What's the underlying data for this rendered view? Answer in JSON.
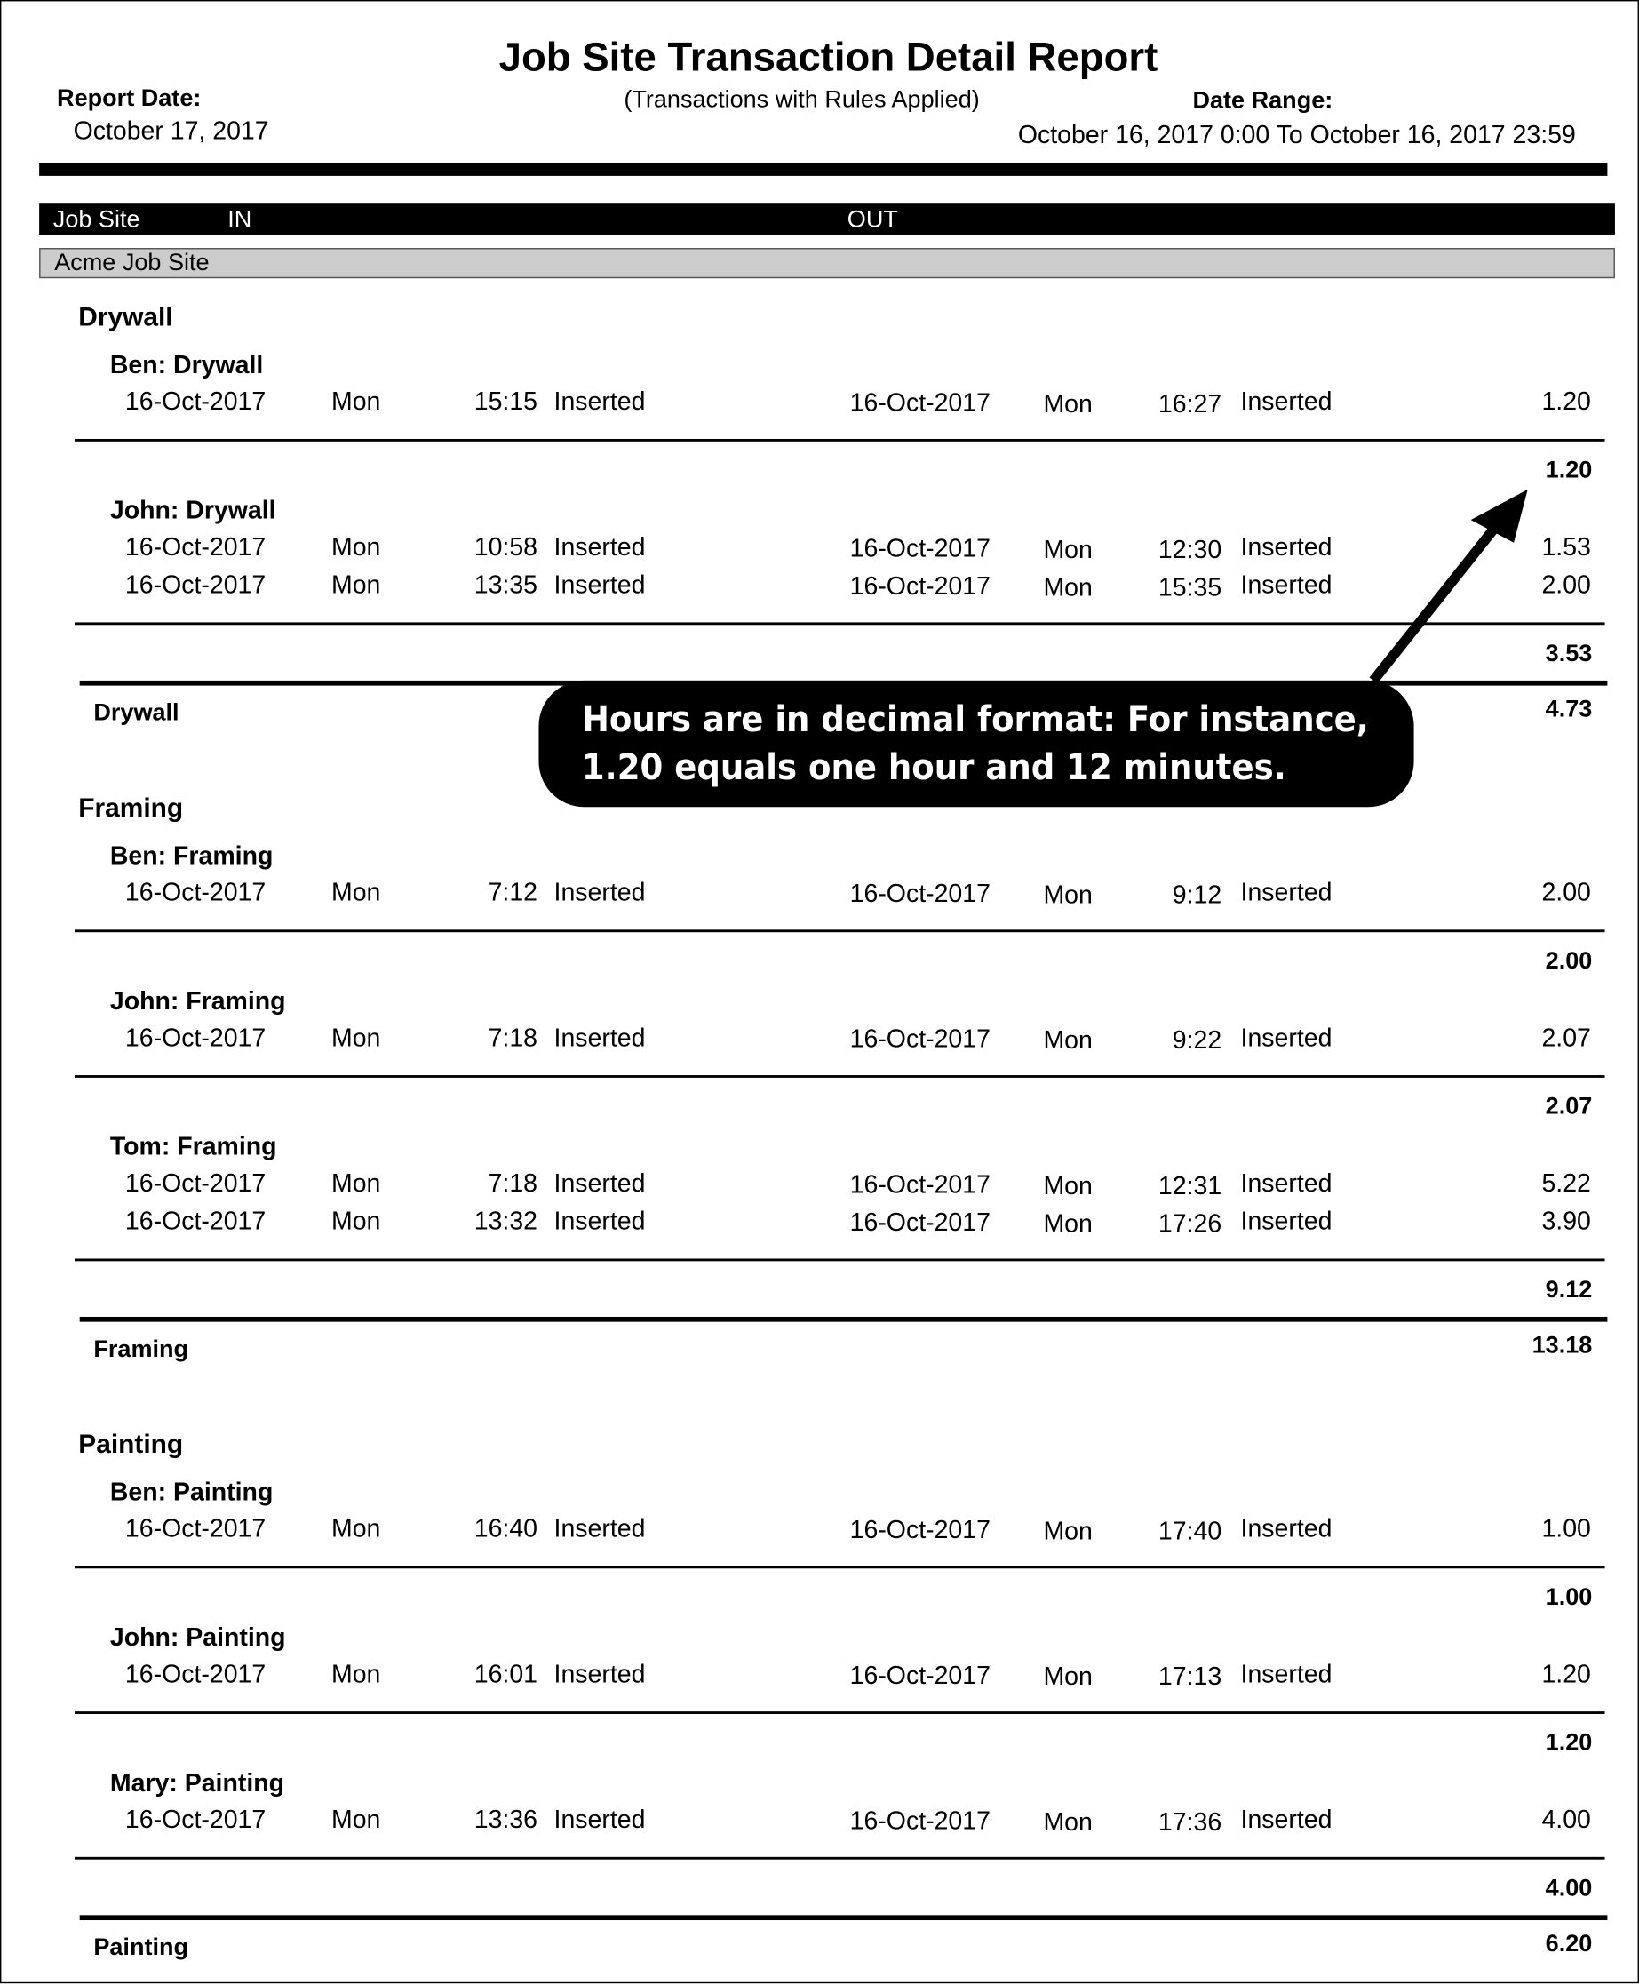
{
  "header": {
    "title": "Job Site Transaction Detail Report",
    "subtitle": "(Transactions with Rules Applied)",
    "report_date_label": "Report Date:",
    "report_date": "October 17, 2017",
    "date_range_label": "Date Range:",
    "date_range": "October 16, 2017 0:00  To  October 16, 2017 23:59"
  },
  "columns": {
    "job_site": "Job Site",
    "in": "IN",
    "out": "OUT"
  },
  "job_site": "Acme Job Site",
  "callout": {
    "line1": "Hours are in decimal format: For instance,",
    "line2": "1.20 equals one hour and 12 minutes."
  },
  "crafts": [
    {
      "name": "Drywall",
      "total_label": "Drywall",
      "total": "4.73",
      "employees": [
        {
          "name": "Ben: Drywall",
          "subtotal": "1.20",
          "rows": [
            {
              "in_date": "16-Oct-2017",
              "in_day": "Mon",
              "in_time": "15:15",
              "in_status": "Inserted",
              "out_date": "16-Oct-2017",
              "out_day": "Mon",
              "out_time": "16:27",
              "out_status": "Inserted",
              "hours": "1.20"
            }
          ]
        },
        {
          "name": "John: Drywall",
          "subtotal": "3.53",
          "rows": [
            {
              "in_date": "16-Oct-2017",
              "in_day": "Mon",
              "in_time": "10:58",
              "in_status": "Inserted",
              "out_date": "16-Oct-2017",
              "out_day": "Mon",
              "out_time": "12:30",
              "out_status": "Inserted",
              "hours": "1.53"
            },
            {
              "in_date": "16-Oct-2017",
              "in_day": "Mon",
              "in_time": "13:35",
              "in_status": "Inserted",
              "out_date": "16-Oct-2017",
              "out_day": "Mon",
              "out_time": "15:35",
              "out_status": "Inserted",
              "hours": "2.00"
            }
          ]
        }
      ]
    },
    {
      "name": "Framing",
      "total_label": "Framing",
      "total": "13.18",
      "employees": [
        {
          "name": "Ben: Framing",
          "subtotal": "2.00",
          "rows": [
            {
              "in_date": "16-Oct-2017",
              "in_day": "Mon",
              "in_time": "7:12",
              "in_status": "Inserted",
              "out_date": "16-Oct-2017",
              "out_day": "Mon",
              "out_time": "9:12",
              "out_status": "Inserted",
              "hours": "2.00"
            }
          ]
        },
        {
          "name": "John: Framing",
          "subtotal": "2.07",
          "rows": [
            {
              "in_date": "16-Oct-2017",
              "in_day": "Mon",
              "in_time": "7:18",
              "in_status": "Inserted",
              "out_date": "16-Oct-2017",
              "out_day": "Mon",
              "out_time": "9:22",
              "out_status": "Inserted",
              "hours": "2.07"
            }
          ]
        },
        {
          "name": "Tom: Framing",
          "subtotal": "9.12",
          "rows": [
            {
              "in_date": "16-Oct-2017",
              "in_day": "Mon",
              "in_time": "7:18",
              "in_status": "Inserted",
              "out_date": "16-Oct-2017",
              "out_day": "Mon",
              "out_time": "12:31",
              "out_status": "Inserted",
              "hours": "5.22"
            },
            {
              "in_date": "16-Oct-2017",
              "in_day": "Mon",
              "in_time": "13:32",
              "in_status": "Inserted",
              "out_date": "16-Oct-2017",
              "out_day": "Mon",
              "out_time": "17:26",
              "out_status": "Inserted",
              "hours": "3.90"
            }
          ]
        }
      ]
    },
    {
      "name": "Painting",
      "total_label": "Painting",
      "total": "6.20",
      "employees": [
        {
          "name": "Ben: Painting",
          "subtotal": "1.00",
          "rows": [
            {
              "in_date": "16-Oct-2017",
              "in_day": "Mon",
              "in_time": "16:40",
              "in_status": "Inserted",
              "out_date": "16-Oct-2017",
              "out_day": "Mon",
              "out_time": "17:40",
              "out_status": "Inserted",
              "hours": "1.00"
            }
          ]
        },
        {
          "name": "John: Painting",
          "subtotal": "1.20",
          "rows": [
            {
              "in_date": "16-Oct-2017",
              "in_day": "Mon",
              "in_time": "16:01",
              "in_status": "Inserted",
              "out_date": "16-Oct-2017",
              "out_day": "Mon",
              "out_time": "17:13",
              "out_status": "Inserted",
              "hours": "1.20"
            }
          ]
        },
        {
          "name": "Mary: Painting",
          "subtotal": "4.00",
          "rows": [
            {
              "in_date": "16-Oct-2017",
              "in_day": "Mon",
              "in_time": "13:36",
              "in_status": "Inserted",
              "out_date": "16-Oct-2017",
              "out_day": "Mon",
              "out_time": "17:36",
              "out_status": "Inserted",
              "hours": "4.00"
            }
          ]
        }
      ]
    }
  ]
}
